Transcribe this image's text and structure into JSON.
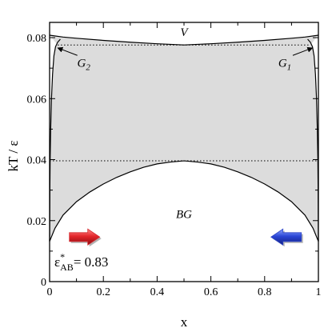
{
  "chart_data": {
    "type": "area",
    "xlabel": "x",
    "ylabel": "kT / ε",
    "xlim": [
      0,
      1
    ],
    "ylim": [
      0,
      0.085
    ],
    "x_ticks": [
      0,
      0.2,
      0.4,
      0.6,
      0.8,
      1
    ],
    "x_tick_labels": [
      "0",
      "0.2",
      "0.4",
      "0.6",
      "0.8",
      "1"
    ],
    "y_ticks": [
      0,
      0.02,
      0.04,
      0.06,
      0.08
    ],
    "y_tick_labels": [
      "0",
      "0.02",
      "0.04",
      "0.06",
      "0.08"
    ],
    "grid": false,
    "fill_color": "#dcdcdc",
    "line_color": "#000000",
    "series": [
      {
        "role": "coexistence-left-branch",
        "x": [
          0.0,
          0.0005,
          0.001,
          0.002,
          0.004,
          0.007,
          0.011,
          0.016,
          0.022,
          0.03,
          0.04
        ],
        "y": [
          0.0132,
          0.02,
          0.03,
          0.04,
          0.05,
          0.06,
          0.068,
          0.074,
          0.077,
          0.0785,
          0.0795
        ]
      },
      {
        "role": "coexistence-right-branch",
        "x": [
          1.0,
          0.9995,
          0.999,
          0.998,
          0.996,
          0.993,
          0.989,
          0.984,
          0.978,
          0.97,
          0.96
        ],
        "y": [
          0.0132,
          0.02,
          0.03,
          0.04,
          0.05,
          0.06,
          0.068,
          0.074,
          0.077,
          0.0785,
          0.0795
        ]
      },
      {
        "role": "vapor-boundary",
        "x": [
          0.0,
          0.05,
          0.1,
          0.2,
          0.3,
          0.4,
          0.5,
          0.6,
          0.7,
          0.8,
          0.9,
          0.95,
          1.0
        ],
        "y": [
          0.0808,
          0.0802,
          0.0798,
          0.0791,
          0.0785,
          0.078,
          0.0776,
          0.078,
          0.0785,
          0.0791,
          0.0798,
          0.0802,
          0.0808
        ]
      },
      {
        "role": "lower-dome",
        "x": [
          0.0,
          0.02,
          0.05,
          0.1,
          0.15,
          0.2,
          0.25,
          0.3,
          0.35,
          0.4,
          0.45,
          0.5,
          0.55,
          0.6,
          0.65,
          0.7,
          0.75,
          0.8,
          0.85,
          0.9,
          0.95,
          0.98,
          1.0
        ],
        "y": [
          0.0132,
          0.0175,
          0.0218,
          0.0262,
          0.0294,
          0.032,
          0.0342,
          0.036,
          0.0375,
          0.0386,
          0.0392,
          0.0396,
          0.0392,
          0.0386,
          0.0375,
          0.036,
          0.0342,
          0.032,
          0.0294,
          0.0262,
          0.0218,
          0.0175,
          0.0132
        ]
      }
    ],
    "dotted_lines": [
      {
        "y": 0.0776,
        "x": [
          0.03,
          0.97
        ]
      },
      {
        "y": 0.0396,
        "x": [
          0.0,
          1.0
        ]
      }
    ],
    "annotations": [
      {
        "text": "V",
        "x": 0.5,
        "y": 0.0805
      },
      {
        "text": "BG",
        "x": 0.5,
        "y": 0.0208
      },
      {
        "label": "G",
        "sub": "2",
        "x": 0.127,
        "y": 0.0705,
        "arrow_to": [
          0.03,
          0.0777
        ]
      },
      {
        "label": "G",
        "sub": "1",
        "x": 0.875,
        "y": 0.0705,
        "arrow_to": [
          0.978,
          0.0777
        ]
      }
    ],
    "legend_text": {
      "epsilon": "ε",
      "star": "*",
      "sub": "AB",
      "value": "= 0.83"
    },
    "flow_arrows": [
      {
        "direction": "right",
        "color": "#d42a2f",
        "x": 0.13,
        "y": 0.0146
      },
      {
        "direction": "left",
        "color": "#2e45c8",
        "x": 0.88,
        "y": 0.0146
      }
    ]
  }
}
